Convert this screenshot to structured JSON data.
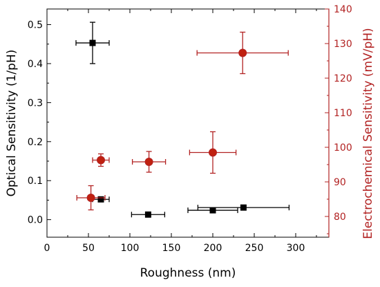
{
  "chart_data": {
    "type": "scatter",
    "xlabel": "Roughness (nm)",
    "ylabel_left": "Optical Sensitivity (1/pH)",
    "ylabel_right": "Electrochemical Sensitivity (mV/pH)",
    "xlim": [
      0,
      340
    ],
    "ylim_left": [
      -0.045,
      0.54
    ],
    "ylim_right": [
      74,
      140
    ],
    "x_ticks": [
      0,
      50,
      100,
      150,
      200,
      250,
      300
    ],
    "y_left_ticks": [
      0.0,
      0.1,
      0.2,
      0.3,
      0.4,
      0.5
    ],
    "y_right_ticks": [
      80,
      90,
      100,
      110,
      120,
      130,
      140
    ],
    "x_tick_labels": [
      "0",
      "50",
      "100",
      "150",
      "200",
      "250",
      "300"
    ],
    "y_left_tick_labels": [
      "0.0",
      "0.1",
      "0.2",
      "0.3",
      "0.4",
      "0.5"
    ],
    "y_right_tick_labels": [
      "80",
      "90",
      "100",
      "110",
      "120",
      "130",
      "140"
    ],
    "grid": false,
    "colors": {
      "left": "#000000",
      "right": "#b22222",
      "marker_right": "#c0200f"
    },
    "series": [
      {
        "axis": "left",
        "marker": "square",
        "points": [
          {
            "x": 55,
            "y": 0.453,
            "xerr": 20,
            "yerr": 0.053
          },
          {
            "x": 65,
            "y": 0.052,
            "xerr": 10,
            "yerr": 0.0
          },
          {
            "x": 122,
            "y": 0.013,
            "xerr": 20,
            "yerr": 0.0
          },
          {
            "x": 200,
            "y": 0.024,
            "xerr": 30,
            "yerr": 0.0
          },
          {
            "x": 237,
            "y": 0.031,
            "xerr": 55,
            "yerr": 0.0
          }
        ]
      },
      {
        "axis": "right",
        "marker": "circle",
        "points": [
          {
            "x": 53,
            "y": 85.4,
            "xerr": 17,
            "yerr": 3.5
          },
          {
            "x": 65,
            "y": 96.3,
            "xerr": 10,
            "yerr": 1.8
          },
          {
            "x": 123,
            "y": 95.8,
            "xerr": 20,
            "yerr": 3.0
          },
          {
            "x": 200,
            "y": 98.5,
            "xerr": 28,
            "yerr": 6.0
          },
          {
            "x": 236,
            "y": 127.3,
            "xerr": 55,
            "yerr": 6.0
          }
        ]
      }
    ]
  }
}
